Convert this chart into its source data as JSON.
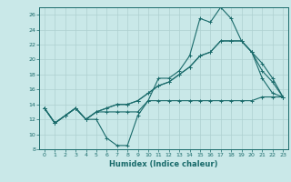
{
  "xlabel": "Humidex (Indice chaleur)",
  "background_color": "#c9e8e8",
  "grid_color": "#aed0d0",
  "line_color": "#1a6b6b",
  "xlim": [
    -0.5,
    23.5
  ],
  "ylim": [
    8,
    27
  ],
  "xticks": [
    0,
    1,
    2,
    3,
    4,
    5,
    6,
    7,
    8,
    9,
    10,
    11,
    12,
    13,
    14,
    15,
    16,
    17,
    18,
    19,
    20,
    21,
    22,
    23
  ],
  "yticks": [
    8,
    10,
    12,
    14,
    16,
    18,
    20,
    22,
    24,
    26
  ],
  "series": [
    [
      13.5,
      11.5,
      12.5,
      13.5,
      12.0,
      12.0,
      9.5,
      8.5,
      8.5,
      12.5,
      14.5,
      17.5,
      17.5,
      18.5,
      20.5,
      25.5,
      25.0,
      27.0,
      25.5,
      22.5,
      21.0,
      18.5,
      17.0,
      15.0
    ],
    [
      13.5,
      11.5,
      12.5,
      13.5,
      12.0,
      13.0,
      13.0,
      13.0,
      13.0,
      13.0,
      14.5,
      14.5,
      14.5,
      14.5,
      14.5,
      14.5,
      14.5,
      14.5,
      14.5,
      14.5,
      14.5,
      15.0,
      15.0,
      15.0
    ],
    [
      13.5,
      11.5,
      12.5,
      13.5,
      12.0,
      13.0,
      13.5,
      14.0,
      14.0,
      14.5,
      15.5,
      16.5,
      17.0,
      18.0,
      19.0,
      20.5,
      21.0,
      22.5,
      22.5,
      22.5,
      21.0,
      19.5,
      17.5,
      15.0
    ],
    [
      13.5,
      11.5,
      12.5,
      13.5,
      12.0,
      13.0,
      13.5,
      14.0,
      14.0,
      14.5,
      15.5,
      16.5,
      17.0,
      18.0,
      19.0,
      20.5,
      21.0,
      22.5,
      22.5,
      22.5,
      21.0,
      17.5,
      15.5,
      15.0
    ]
  ]
}
